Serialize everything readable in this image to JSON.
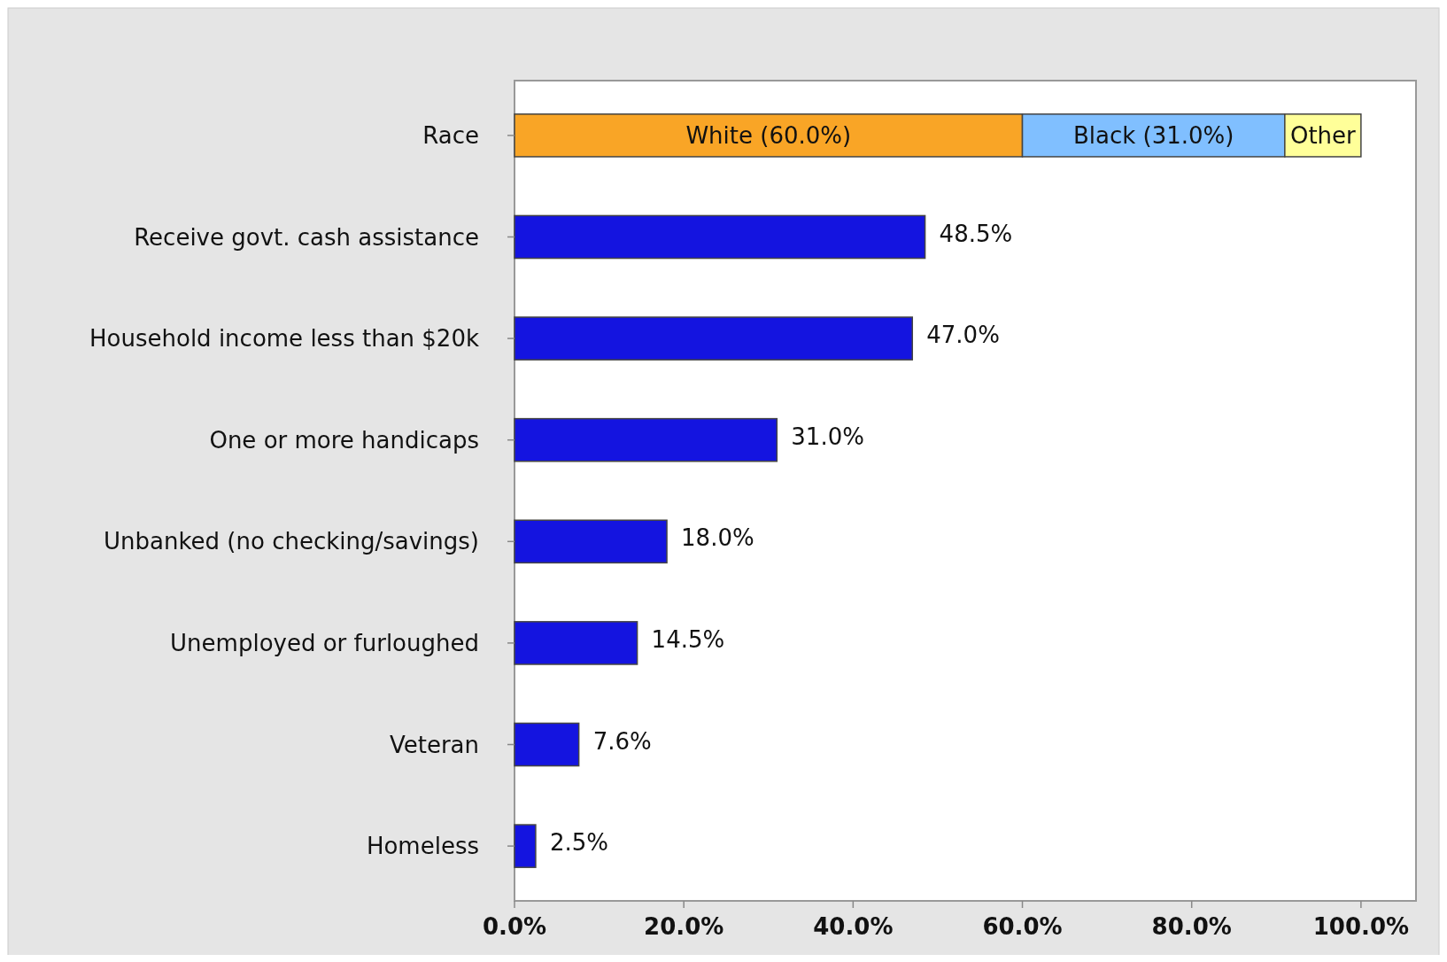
{
  "chart_data": {
    "type": "bar",
    "orientation": "horizontal",
    "stacked": true,
    "categories": [
      "Race",
      "Receive govt. cash assistance",
      "Household income less than $20k",
      "One or more handicaps",
      "Unbanked (no checking/savings)",
      "Unemployed or furloughed",
      "Veteran",
      "Homeless"
    ],
    "series": [
      {
        "colors": [
          "#f9a526",
          "#1414e0",
          "#1414e0",
          "#1414e0",
          "#1414e0",
          "#1414e0",
          "#1414e0",
          "#1414e0"
        ],
        "values": [
          60,
          48.5,
          47,
          31,
          18,
          14.5,
          7.6,
          2.5
        ],
        "value_labels": [
          "White (60.0%)",
          "48.5%",
          "47.0%",
          "31.0%",
          "18.0%",
          "14.5%",
          "7.6%",
          "2.5%"
        ]
      },
      {
        "color": "#80bfff",
        "values": [
          31,
          null,
          null,
          null,
          null,
          null,
          null,
          null
        ],
        "value_labels": [
          "Black (31.0%)",
          null,
          null,
          null,
          null,
          null,
          null,
          null
        ]
      },
      {
        "color": "#ffff99",
        "values": [
          9,
          null,
          null,
          null,
          null,
          null,
          null,
          null
        ],
        "value_labels": [
          "Other",
          null,
          null,
          null,
          null,
          null,
          null,
          null
        ]
      }
    ],
    "xlim": [
      0,
      106.5
    ],
    "xticks": [
      {
        "value": 0,
        "label": "0.0%"
      },
      {
        "value": 20,
        "label": "20.0%"
      },
      {
        "value": 40,
        "label": "40.0%"
      },
      {
        "value": 60,
        "label": "60.0%"
      },
      {
        "value": 80,
        "label": "80.0%"
      },
      {
        "value": 100,
        "label": "100.0%"
      }
    ],
    "grid": false
  }
}
